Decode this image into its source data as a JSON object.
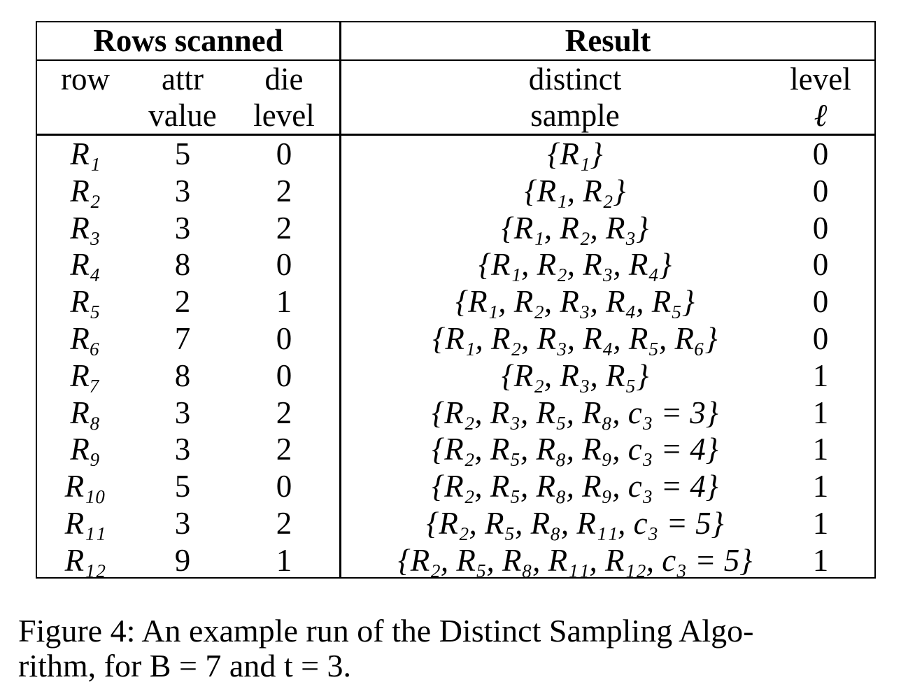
{
  "table": {
    "group_left": "Rows scanned",
    "group_right": "Result",
    "headers": {
      "row": "row",
      "attr_1": "attr",
      "attr_2": "value",
      "die_1": "die",
      "die_2": "level",
      "sample_1": "distinct",
      "sample_2": "sample",
      "level_1": "level",
      "level_2": "ℓ"
    },
    "rows": [
      {
        "row": "R₁",
        "attr": "5",
        "die": "0",
        "sample": "{R₁}",
        "level": "0"
      },
      {
        "row": "R₂",
        "attr": "3",
        "die": "2",
        "sample": "{R₁, R₂}",
        "level": "0"
      },
      {
        "row": "R₃",
        "attr": "3",
        "die": "2",
        "sample": "{R₁, R₂, R₃}",
        "level": "0"
      },
      {
        "row": "R₄",
        "attr": "8",
        "die": "0",
        "sample": "{R₁, R₂, R₃, R₄}",
        "level": "0"
      },
      {
        "row": "R₅",
        "attr": "2",
        "die": "1",
        "sample": "{R₁, R₂, R₃, R₄, R₅}",
        "level": "0"
      },
      {
        "row": "R₆",
        "attr": "7",
        "die": "0",
        "sample": "{R₁, R₂, R₃, R₄, R₅, R₆}",
        "level": "0"
      },
      {
        "row": "R₇",
        "attr": "8",
        "die": "0",
        "sample": "{R₂, R₃, R₅}",
        "level": "1"
      },
      {
        "row": "R₈",
        "attr": "3",
        "die": "2",
        "sample": "{R₂, R₃, R₅, R₈, c₃ = 3}",
        "level": "1"
      },
      {
        "row": "R₉",
        "attr": "3",
        "die": "2",
        "sample": "{R₂, R₅, R₈, R₉, c₃ = 4}",
        "level": "1"
      },
      {
        "row": "R₁₀",
        "attr": "5",
        "die": "0",
        "sample": "{R₂, R₅, R₈, R₉, c₃ = 4}",
        "level": "1"
      },
      {
        "row": "R₁₁",
        "attr": "3",
        "die": "2",
        "sample": "{R₂, R₅, R₈, R₁₁, c₃ = 5}",
        "level": "1"
      },
      {
        "row": "R₁₂",
        "attr": "9",
        "die": "1",
        "sample": "{R₂, R₅, R₈, R₁₁, R₁₂, c₃ = 5}",
        "level": "1"
      }
    ]
  },
  "caption": "Figure 4: An example run of the Distinct Sampling Algo-rithm, for B = 7 and t = 3.",
  "caption_line1": "Figure 4: An example run of the Distinct Sampling Algo-",
  "caption_line2": "rithm, for B = 7 and t = 3."
}
